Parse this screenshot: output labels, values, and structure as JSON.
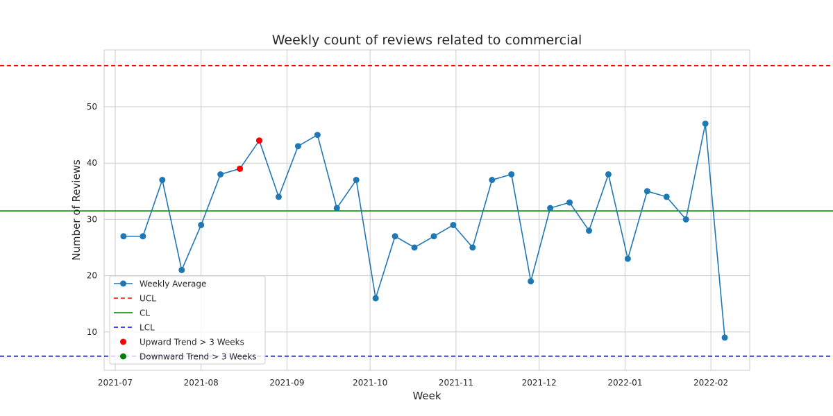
{
  "chart_data": {
    "type": "line",
    "title": "Weekly count of reviews related to commercial",
    "xlabel": "Week",
    "ylabel": "Number of Reviews",
    "x_ticks": [
      {
        "date": "2021-07-01",
        "label": "2021-07"
      },
      {
        "date": "2021-08-01",
        "label": "2021-08"
      },
      {
        "date": "2021-09-01",
        "label": "2021-09"
      },
      {
        "date": "2021-10-01",
        "label": "2021-10"
      },
      {
        "date": "2021-11-01",
        "label": "2021-11"
      },
      {
        "date": "2021-12-01",
        "label": "2021-12"
      },
      {
        "date": "2022-01-01",
        "label": "2022-01"
      },
      {
        "date": "2022-02-01",
        "label": "2022-02"
      }
    ],
    "y_ticks": [
      10,
      20,
      30,
      40,
      50
    ],
    "xlim": [
      "2021-06-27",
      "2022-02-15"
    ],
    "ylim": [
      3.2,
      60.1
    ],
    "grid": true,
    "legend_position": "lower-left",
    "series": [
      {
        "name": "Weekly Average",
        "color": "#1f77b4",
        "marker": "circle",
        "points": [
          {
            "x": "2021-07-04",
            "y": 27
          },
          {
            "x": "2021-07-11",
            "y": 27
          },
          {
            "x": "2021-07-18",
            "y": 37
          },
          {
            "x": "2021-07-25",
            "y": 21
          },
          {
            "x": "2021-08-01",
            "y": 29
          },
          {
            "x": "2021-08-08",
            "y": 38
          },
          {
            "x": "2021-08-15",
            "y": 39
          },
          {
            "x": "2021-08-22",
            "y": 44
          },
          {
            "x": "2021-08-29",
            "y": 34
          },
          {
            "x": "2021-09-05",
            "y": 43
          },
          {
            "x": "2021-09-12",
            "y": 45
          },
          {
            "x": "2021-09-19",
            "y": 32
          },
          {
            "x": "2021-09-26",
            "y": 37
          },
          {
            "x": "2021-10-03",
            "y": 16
          },
          {
            "x": "2021-10-10",
            "y": 27
          },
          {
            "x": "2021-10-17",
            "y": 25
          },
          {
            "x": "2021-10-24",
            "y": 27
          },
          {
            "x": "2021-10-31",
            "y": 29
          },
          {
            "x": "2021-11-07",
            "y": 25
          },
          {
            "x": "2021-11-14",
            "y": 37
          },
          {
            "x": "2021-11-21",
            "y": 38
          },
          {
            "x": "2021-11-28",
            "y": 19
          },
          {
            "x": "2021-12-05",
            "y": 32
          },
          {
            "x": "2021-12-12",
            "y": 33
          },
          {
            "x": "2021-12-19",
            "y": 28
          },
          {
            "x": "2021-12-26",
            "y": 38
          },
          {
            "x": "2022-01-02",
            "y": 23
          },
          {
            "x": "2022-01-09",
            "y": 35
          },
          {
            "x": "2022-01-16",
            "y": 34
          },
          {
            "x": "2022-01-23",
            "y": 30
          },
          {
            "x": "2022-01-30",
            "y": 47
          },
          {
            "x": "2022-02-06",
            "y": 9
          }
        ]
      },
      {
        "name": "UCL",
        "type": "hline",
        "y": 57.3,
        "color": "#ff0000",
        "style": "dashed"
      },
      {
        "name": "CL",
        "type": "hline",
        "y": 31.5,
        "color": "#008000",
        "style": "solid"
      },
      {
        "name": "LCL",
        "type": "hline",
        "y": 5.7,
        "color": "#0000ff",
        "style": "dashed"
      },
      {
        "name": "Upward Trend > 3 Weeks",
        "type": "scatter",
        "color": "#ff0000",
        "points": [
          {
            "x": "2021-08-15",
            "y": 39
          },
          {
            "x": "2021-08-22",
            "y": 44
          }
        ]
      },
      {
        "name": "Downward Trend > 3 Weeks",
        "type": "scatter",
        "color": "#008000",
        "points": []
      }
    ]
  }
}
